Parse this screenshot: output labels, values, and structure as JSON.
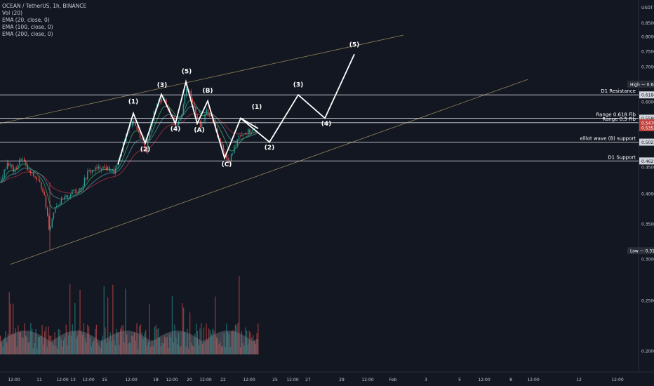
{
  "legend": {
    "symbol": "OCEAN / TetherUS, 1h, BINANCE",
    "vol": "Vol (20)",
    "ema20": "EMA (20, close, 0)",
    "ema100": "EMA (100, close, 0)",
    "ema200": "EMA (200, close, 0)"
  },
  "chart_data": {
    "type": "candlestick",
    "title": "OCEAN / TetherUS, 1h, BINANCE",
    "currency": "USDT",
    "yscale": "log",
    "ylim": [
      0.18,
      0.87
    ],
    "grid": false,
    "y_ticks": [
      "0.8500",
      "0.8000",
      "0.7500",
      "0.7000",
      "0.6500",
      "0.6000",
      "0.5500",
      "0.5000",
      "0.4500",
      "0.4000",
      "0.3500",
      "0.3000",
      "0.2500",
      "0.2000"
    ],
    "x_ticks": [
      "12:00",
      "11",
      "12:00",
      "13",
      "12:00",
      "15",
      "12:00",
      "18",
      "12:00",
      "20",
      "12:00",
      "22",
      "12:00",
      "25",
      "12:00",
      "27",
      "29",
      "12:00",
      "Feb",
      "3",
      "5",
      "12:00",
      "8",
      "12:00",
      "12",
      "12:00"
    ],
    "levels": [
      {
        "label": "D1 Resistance",
        "value": 0.6184,
        "tag": "0.6184"
      },
      {
        "label": "Range 0.618 Fib",
        "value": 0.558,
        "tag": "0.5580"
      },
      {
        "label": "Range 0.5 Fib",
        "value": 0.547,
        "tag": "0.5470"
      },
      {
        "label": "elliot wave (B) support",
        "value": 0.5021,
        "tag": "0.5021"
      },
      {
        "label": "D1 Support",
        "value": 0.4621,
        "tag": "0.4621"
      }
    ],
    "high": {
      "label": "High",
      "value": "0.6485"
    },
    "low": {
      "label": "Low",
      "value": "0.3111"
    },
    "last_price": {
      "value": "0.5470",
      "sub": "0.5353"
    },
    "wave_labels": [
      "(1)",
      "(2)",
      "(3)",
      "(4)",
      "(5)",
      "(B)",
      "(A)",
      "(C)",
      "(1)",
      "(2)",
      "(3)",
      "(4)",
      "(5)"
    ],
    "price_path_start": [
      [
        0,
        0.42
      ],
      [
        10,
        0.46
      ],
      [
        20,
        0.44
      ],
      [
        30,
        0.47
      ],
      [
        40,
        0.44
      ],
      [
        50,
        0.43
      ],
      [
        60,
        0.41
      ],
      [
        66,
        0.37
      ],
      [
        70,
        0.34
      ],
      [
        74,
        0.36
      ],
      [
        78,
        0.38
      ],
      [
        86,
        0.385
      ],
      [
        95,
        0.395
      ],
      [
        105,
        0.405
      ],
      [
        115,
        0.41
      ],
      [
        125,
        0.44
      ],
      [
        135,
        0.445
      ],
      [
        145,
        0.45
      ],
      [
        155,
        0.445
      ],
      [
        162,
        0.44
      ],
      [
        168,
        0.455
      ]
    ],
    "projection": [
      0.5021,
      0.558,
      0.5021,
      0.6184,
      0.558,
      0.74
    ]
  },
  "colors": {
    "background": "#131722",
    "text": "#c8cbd3",
    "level_line": "#d1d4dc",
    "channel": "#a89860",
    "up": "#26a69a",
    "down": "#ef5350",
    "ema20": "#2e8b57",
    "ema100": "#3f7a87",
    "ema200": "#8b2b3b",
    "wave": "#ffffff",
    "price_tag": "#c1433f"
  }
}
